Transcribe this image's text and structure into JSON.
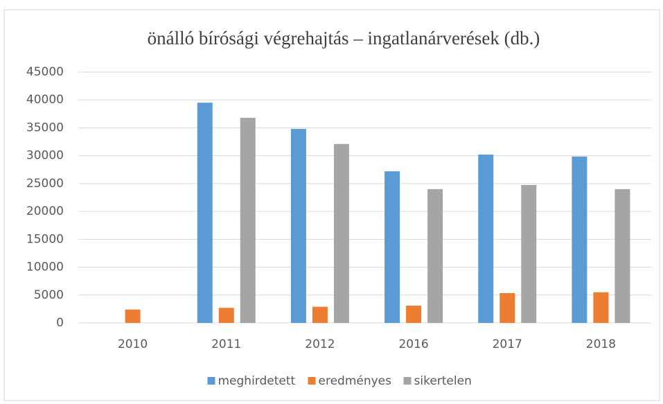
{
  "chart_data": {
    "type": "bar",
    "title": "önálló bírósági végrehajtás – ingatlanárverések (db.)",
    "categories": [
      "2010",
      "2011",
      "2012",
      "2016",
      "2017",
      "2018"
    ],
    "series": [
      {
        "name": "meghirdetett",
        "color": "#5b9bd5",
        "values": [
          null,
          39500,
          34800,
          27200,
          30200,
          29850
        ]
      },
      {
        "name": "eredményes",
        "color": "#ed7d31",
        "values": [
          2400,
          2700,
          2900,
          3100,
          5350,
          5500
        ]
      },
      {
        "name": "sikertelen",
        "color": "#a5a5a5",
        "values": [
          null,
          36800,
          32100,
          24000,
          24750,
          24000
        ]
      }
    ],
    "ylim": [
      0,
      45000
    ],
    "yticks": [
      0,
      5000,
      10000,
      15000,
      20000,
      25000,
      30000,
      35000,
      40000,
      45000
    ],
    "grid": true,
    "legend": "bottom"
  }
}
